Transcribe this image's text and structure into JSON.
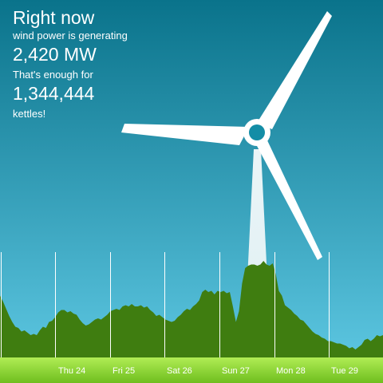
{
  "headline": {
    "title": "Right now",
    "subtitle": "wind power is generating",
    "power": "2,420 MW",
    "comparison": "That's enough for",
    "kettles_count": "1,344,444",
    "kettles_label": "kettles!"
  },
  "colors": {
    "sky_top": "#0a738b",
    "sky_bottom": "#61cbe6",
    "area_fill": "#3f7d10",
    "ground_top": "#b0ed55",
    "ground_bottom": "#6fbe1e",
    "turbine": "#ffffff"
  },
  "chart_data": {
    "type": "area",
    "title": "",
    "xlabel": "",
    "ylabel": "",
    "x_ticks": [
      "Thu 24",
      "Fri 25",
      "Sat 26",
      "Sun 27",
      "Mon 28",
      "Tue 29"
    ],
    "ylim": [
      0,
      1
    ],
    "values": [
      0.53,
      0.48,
      0.42,
      0.36,
      0.31,
      0.27,
      0.26,
      0.23,
      0.24,
      0.22,
      0.2,
      0.21,
      0.2,
      0.24,
      0.27,
      0.26,
      0.31,
      0.32,
      0.35,
      0.39,
      0.41,
      0.41,
      0.39,
      0.4,
      0.38,
      0.37,
      0.33,
      0.3,
      0.28,
      0.29,
      0.31,
      0.33,
      0.34,
      0.33,
      0.35,
      0.37,
      0.4,
      0.41,
      0.42,
      0.41,
      0.44,
      0.45,
      0.44,
      0.46,
      0.44,
      0.44,
      0.45,
      0.43,
      0.44,
      0.41,
      0.39,
      0.36,
      0.37,
      0.35,
      0.33,
      0.32,
      0.31,
      0.32,
      0.35,
      0.37,
      0.4,
      0.42,
      0.41,
      0.44,
      0.46,
      0.49,
      0.56,
      0.58,
      0.56,
      0.57,
      0.54,
      0.57,
      0.56,
      0.57,
      0.55,
      0.56,
      0.44,
      0.31,
      0.4,
      0.63,
      0.76,
      0.78,
      0.79,
      0.79,
      0.78,
      0.79,
      0.82,
      0.79,
      0.78,
      0.8,
      0.71,
      0.57,
      0.53,
      0.45,
      0.43,
      0.41,
      0.38,
      0.36,
      0.33,
      0.32,
      0.29,
      0.26,
      0.23,
      0.21,
      0.2,
      0.18,
      0.17,
      0.15,
      0.15,
      0.14,
      0.13,
      0.13,
      0.12,
      0.11,
      0.09,
      0.1,
      0.08,
      0.1,
      0.12,
      0.16,
      0.17,
      0.15,
      0.17,
      0.2,
      0.19,
      0.2
    ]
  }
}
